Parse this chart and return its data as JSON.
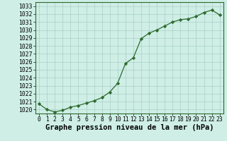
{
  "x": [
    0,
    1,
    2,
    3,
    4,
    5,
    6,
    7,
    8,
    9,
    10,
    11,
    12,
    13,
    14,
    15,
    16,
    17,
    18,
    19,
    20,
    21,
    22,
    23
  ],
  "y": [
    1020.7,
    1020.0,
    1019.7,
    1019.9,
    1020.3,
    1020.5,
    1020.8,
    1021.1,
    1021.5,
    1022.2,
    1023.3,
    1025.8,
    1026.5,
    1028.9,
    1029.6,
    1030.0,
    1030.5,
    1031.0,
    1031.3,
    1031.4,
    1031.7,
    1032.2,
    1032.5,
    1031.9
  ],
  "ylim": [
    1019.5,
    1033.5
  ],
  "yticks": [
    1020,
    1021,
    1022,
    1023,
    1024,
    1025,
    1026,
    1027,
    1028,
    1029,
    1030,
    1031,
    1032,
    1033
  ],
  "xticks": [
    0,
    1,
    2,
    3,
    4,
    5,
    6,
    7,
    8,
    9,
    10,
    11,
    12,
    13,
    14,
    15,
    16,
    17,
    18,
    19,
    20,
    21,
    22,
    23
  ],
  "xlabel": "Graphe pression niveau de la mer (hPa)",
  "line_color": "#2d6a2d",
  "marker": "D",
  "marker_size": 2.2,
  "bg_color": "#ceeee6",
  "grid_color": "#aacfc6",
  "tick_fontsize": 5.8,
  "xlabel_fontsize": 7.5,
  "line_width": 0.9
}
